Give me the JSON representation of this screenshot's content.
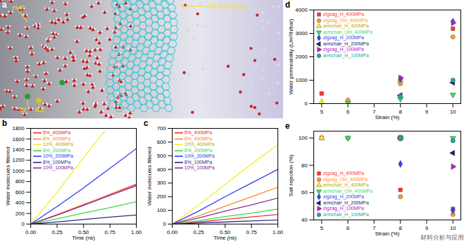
{
  "illustration": {
    "title": "a",
    "labels": [
      "H₂O",
      "GO membrane",
      "Cl⁻",
      "Na⁺"
    ]
  },
  "watermark": "材料分析与应用",
  "chart_data": [
    {
      "type": "line",
      "title": "b",
      "x_label": "Time (ns)",
      "y_label": "Water molecules filtered",
      "xlim": [
        0,
        1.0
      ],
      "ylim": [
        0,
        1800
      ],
      "xticks": [
        {
          "value": 0,
          "label": "0.00"
        },
        {
          "value": 0.25,
          "label": "0.25"
        },
        {
          "value": 0.5,
          "label": "0.50"
        },
        {
          "value": 0.75,
          "label": "0.75"
        },
        {
          "value": 1.0,
          "label": "1.00"
        }
      ],
      "yticks": [
        0,
        200,
        400,
        600,
        800,
        1000,
        1200,
        1400,
        1600,
        1800
      ],
      "legend": "top-left",
      "series": [
        {
          "name": "5%_400MPa",
          "color": "#e8312a",
          "x": [
            0,
            0.25,
            0.5,
            0.75,
            1.0
          ],
          "values": [
            0,
            170,
            360,
            560,
            750
          ]
        },
        {
          "name": "8%_400MPa",
          "color": "#f5893a",
          "x": [
            0,
            0.25,
            0.5,
            0.75,
            1.0
          ],
          "values": [
            0,
            180,
            370,
            550,
            730
          ]
        },
        {
          "name": "10%_400MPa",
          "color": "#f2ee2a",
          "x": [
            0,
            0.25,
            0.5,
            0.7
          ],
          "values": [
            0,
            600,
            1250,
            1750
          ]
        },
        {
          "name": "8%_200MPa",
          "color": "#3ad84a",
          "x": [
            0,
            0.25,
            0.5,
            0.75,
            1.0
          ],
          "values": [
            0,
            100,
            210,
            310,
            420
          ]
        },
        {
          "name": "10%_200MPa",
          "color": "#2a3af0",
          "x": [
            0,
            0.25,
            0.5,
            0.75,
            1.0
          ],
          "values": [
            0,
            330,
            680,
            1050,
            1420
          ]
        },
        {
          "name": "8%_100MPa",
          "color": "#2a2a8a",
          "x": [
            0,
            0.25,
            0.5,
            0.75,
            1.0
          ],
          "values": [
            0,
            40,
            85,
            130,
            170
          ]
        },
        {
          "name": "10%_100MPa",
          "color": "#8a2a9a",
          "x": [
            0,
            0.25,
            0.5,
            0.75,
            1.0
          ],
          "values": [
            0,
            170,
            350,
            540,
            720
          ]
        }
      ]
    },
    {
      "type": "line",
      "title": "c",
      "x_label": "Time (ns)",
      "y_label": "Water molecules filtered",
      "xlim": [
        0,
        1.0
      ],
      "ylim": [
        0,
        700
      ],
      "xticks": [
        {
          "value": 0,
          "label": "0.00"
        },
        {
          "value": 0.25,
          "label": "0.25"
        },
        {
          "value": 0.5,
          "label": "0.50"
        },
        {
          "value": 0.75,
          "label": "0.75"
        },
        {
          "value": 1.0,
          "label": "1.00"
        }
      ],
      "yticks": [
        0,
        100,
        200,
        300,
        400,
        500,
        600,
        700
      ],
      "legend": "top-left",
      "series": [
        {
          "name": "5%_400MPa",
          "color": "#e8312a",
          "x": [
            0,
            0.25,
            0.5,
            0.75,
            1.0
          ],
          "values": [
            0,
            15,
            35,
            52,
            70
          ]
        },
        {
          "name": "8%_400MPa",
          "color": "#f5893a",
          "x": [
            0,
            0.25,
            0.5,
            0.75,
            1.0
          ],
          "values": [
            0,
            60,
            130,
            200,
            270
          ]
        },
        {
          "name": "10%_400MPa",
          "color": "#f2ee2a",
          "x": [
            0,
            0.25,
            0.5,
            0.75,
            1.0
          ],
          "values": [
            0,
            140,
            290,
            440,
            580
          ]
        },
        {
          "name": "8%_200MPa",
          "color": "#3ad84a",
          "x": [
            0,
            0.25,
            0.5,
            0.75,
            1.0
          ],
          "values": [
            0,
            25,
            55,
            80,
            110
          ]
        },
        {
          "name": "10%_200MPa",
          "color": "#2a3af0",
          "x": [
            0,
            0.25,
            0.5,
            0.75,
            1.0
          ],
          "values": [
            0,
            95,
            200,
            300,
            400
          ]
        },
        {
          "name": "8%_100MPa",
          "color": "#2a2a8a",
          "x": [
            0,
            0.25,
            0.5,
            0.75,
            1.0
          ],
          "values": [
            0,
            8,
            15,
            23,
            30
          ]
        },
        {
          "name": "10%_100MPa",
          "color": "#8a2a9a",
          "x": [
            0,
            0.25,
            0.5,
            0.75,
            1.0
          ],
          "values": [
            0,
            45,
            95,
            140,
            190
          ]
        }
      ]
    },
    {
      "type": "scatter",
      "title": "d",
      "x_label": "Strain (%)",
      "y_label": "Water permeability (L/m²/h/bar)",
      "xlim": [
        4.7,
        10.3
      ],
      "ylim": [
        0,
        4000
      ],
      "xticks": [
        5,
        6,
        7,
        8,
        9,
        10
      ],
      "yticks": [
        0,
        1000,
        2000,
        3000,
        4000
      ],
      "legend": "top-left",
      "series": [
        {
          "name": "zigzag_H_400MPa",
          "color": "#ff3333",
          "marker": "square",
          "x": [
            5,
            8,
            10
          ],
          "values": [
            430,
            1000,
            3200
          ]
        },
        {
          "name": "zigzag_OH_400MPa",
          "color": "#ff9933",
          "marker": "circle",
          "x": [
            6,
            8,
            10
          ],
          "values": [
            150,
            850,
            2850
          ]
        },
        {
          "name": "armchair_H_400MPa",
          "color": "#ffee22",
          "marker": "triangle-up",
          "x": [
            5,
            8
          ],
          "values": [
            60,
            1000
          ]
        },
        {
          "name": "armchair_OH_400MPa",
          "color": "#33dd66",
          "marker": "triangle-down",
          "x": [
            6,
            8,
            10
          ],
          "values": [
            30,
            200,
            380
          ]
        },
        {
          "name": "zigzag_H_200MPa",
          "color": "#3344ee",
          "marker": "diamond",
          "x": [
            8,
            10
          ],
          "values": [
            1050,
            3500
          ]
        },
        {
          "name": "armchair_H_200MPa",
          "color": "#22227a",
          "marker": "triangle-left",
          "x": [
            8,
            10
          ],
          "values": [
            350,
            900
          ]
        },
        {
          "name": "zigzag_H_100MPa",
          "color": "#aa22cc",
          "marker": "triangle-right",
          "x": [
            8,
            10
          ],
          "values": [
            1100,
            3450
          ]
        },
        {
          "name": "armchair_H_100MPa",
          "color": "#22aa99",
          "marker": "circle",
          "x": [
            8,
            10
          ],
          "values": [
            300,
            1000
          ]
        }
      ]
    },
    {
      "type": "scatter",
      "title": "e",
      "x_label": "Strain (%)",
      "y_label": "Salt rejection (%)",
      "xlim": [
        4.7,
        10.3
      ],
      "ylim": [
        40,
        105
      ],
      "xticks": [
        5,
        6,
        7,
        8,
        9,
        10
      ],
      "yticks": [
        40,
        60,
        80,
        100
      ],
      "legend": "bottom-left",
      "series": [
        {
          "name": "zigzag_H_400MPa",
          "color": "#ff3333",
          "marker": "square",
          "x": [
            5,
            8,
            10
          ],
          "values": [
            100,
            62,
            48
          ]
        },
        {
          "name": "zigzag_OH_400MPa",
          "color": "#ff9933",
          "marker": "circle",
          "x": [
            6,
            8,
            10
          ],
          "values": [
            100,
            57,
            44
          ]
        },
        {
          "name": "armchair_H_400MPa",
          "color": "#ffee22",
          "marker": "triangle-up",
          "x": [
            5,
            8
          ],
          "values": [
            100,
            100
          ]
        },
        {
          "name": "armchair_OH_400MPa",
          "color": "#33dd66",
          "marker": "triangle-down",
          "x": [
            6,
            8,
            10
          ],
          "values": [
            100,
            100,
            100
          ]
        },
        {
          "name": "zigzag_H_200MPa",
          "color": "#3344ee",
          "marker": "diamond",
          "x": [
            8,
            10
          ],
          "values": [
            81,
            47
          ]
        },
        {
          "name": "armchair_H_200MPa",
          "color": "#22227a",
          "marker": "triangle-left",
          "x": [
            8,
            10
          ],
          "values": [
            100,
            89
          ]
        },
        {
          "name": "zigzag_H_100MPa",
          "color": "#aa22cc",
          "marker": "triangle-right",
          "x": [
            8,
            10
          ],
          "values": [
            100,
            79
          ]
        },
        {
          "name": "armchair_H_100MPa",
          "color": "#22aa99",
          "marker": "circle",
          "x": [
            8,
            10
          ],
          "values": [
            100,
            98
          ]
        }
      ]
    }
  ]
}
